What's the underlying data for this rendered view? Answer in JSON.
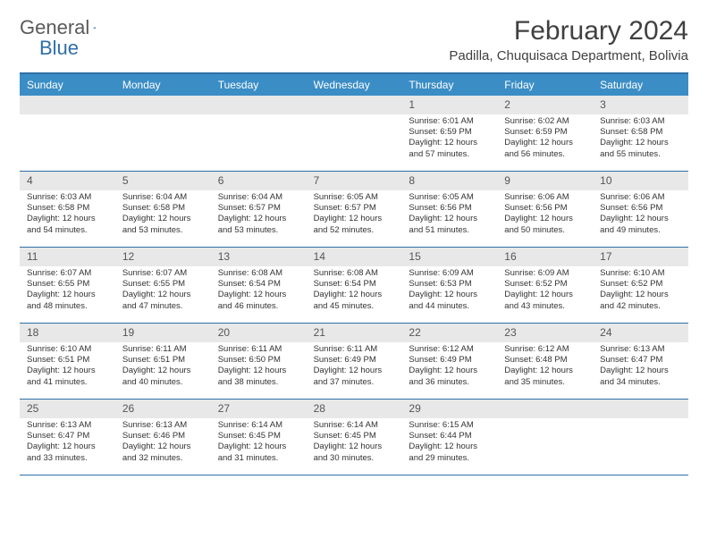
{
  "logo": {
    "text1": "General",
    "text2": "Blue"
  },
  "header": {
    "month_title": "February 2024",
    "location": "Padilla, Chuquisaca Department, Bolivia"
  },
  "day_names": [
    "Sunday",
    "Monday",
    "Tuesday",
    "Wednesday",
    "Thursday",
    "Friday",
    "Saturday"
  ],
  "colors": {
    "header_bg": "#3b8dc6",
    "header_text": "#ffffff",
    "border": "#2f6fa8",
    "daynum_bg": "#e8e8e8",
    "text": "#333333"
  },
  "weeks": [
    [
      {
        "n": "",
        "sr": "",
        "ss": "",
        "dl": ""
      },
      {
        "n": "",
        "sr": "",
        "ss": "",
        "dl": ""
      },
      {
        "n": "",
        "sr": "",
        "ss": "",
        "dl": ""
      },
      {
        "n": "",
        "sr": "",
        "ss": "",
        "dl": ""
      },
      {
        "n": "1",
        "sr": "Sunrise: 6:01 AM",
        "ss": "Sunset: 6:59 PM",
        "dl": "Daylight: 12 hours and 57 minutes."
      },
      {
        "n": "2",
        "sr": "Sunrise: 6:02 AM",
        "ss": "Sunset: 6:59 PM",
        "dl": "Daylight: 12 hours and 56 minutes."
      },
      {
        "n": "3",
        "sr": "Sunrise: 6:03 AM",
        "ss": "Sunset: 6:58 PM",
        "dl": "Daylight: 12 hours and 55 minutes."
      }
    ],
    [
      {
        "n": "4",
        "sr": "Sunrise: 6:03 AM",
        "ss": "Sunset: 6:58 PM",
        "dl": "Daylight: 12 hours and 54 minutes."
      },
      {
        "n": "5",
        "sr": "Sunrise: 6:04 AM",
        "ss": "Sunset: 6:58 PM",
        "dl": "Daylight: 12 hours and 53 minutes."
      },
      {
        "n": "6",
        "sr": "Sunrise: 6:04 AM",
        "ss": "Sunset: 6:57 PM",
        "dl": "Daylight: 12 hours and 53 minutes."
      },
      {
        "n": "7",
        "sr": "Sunrise: 6:05 AM",
        "ss": "Sunset: 6:57 PM",
        "dl": "Daylight: 12 hours and 52 minutes."
      },
      {
        "n": "8",
        "sr": "Sunrise: 6:05 AM",
        "ss": "Sunset: 6:56 PM",
        "dl": "Daylight: 12 hours and 51 minutes."
      },
      {
        "n": "9",
        "sr": "Sunrise: 6:06 AM",
        "ss": "Sunset: 6:56 PM",
        "dl": "Daylight: 12 hours and 50 minutes."
      },
      {
        "n": "10",
        "sr": "Sunrise: 6:06 AM",
        "ss": "Sunset: 6:56 PM",
        "dl": "Daylight: 12 hours and 49 minutes."
      }
    ],
    [
      {
        "n": "11",
        "sr": "Sunrise: 6:07 AM",
        "ss": "Sunset: 6:55 PM",
        "dl": "Daylight: 12 hours and 48 minutes."
      },
      {
        "n": "12",
        "sr": "Sunrise: 6:07 AM",
        "ss": "Sunset: 6:55 PM",
        "dl": "Daylight: 12 hours and 47 minutes."
      },
      {
        "n": "13",
        "sr": "Sunrise: 6:08 AM",
        "ss": "Sunset: 6:54 PM",
        "dl": "Daylight: 12 hours and 46 minutes."
      },
      {
        "n": "14",
        "sr": "Sunrise: 6:08 AM",
        "ss": "Sunset: 6:54 PM",
        "dl": "Daylight: 12 hours and 45 minutes."
      },
      {
        "n": "15",
        "sr": "Sunrise: 6:09 AM",
        "ss": "Sunset: 6:53 PM",
        "dl": "Daylight: 12 hours and 44 minutes."
      },
      {
        "n": "16",
        "sr": "Sunrise: 6:09 AM",
        "ss": "Sunset: 6:52 PM",
        "dl": "Daylight: 12 hours and 43 minutes."
      },
      {
        "n": "17",
        "sr": "Sunrise: 6:10 AM",
        "ss": "Sunset: 6:52 PM",
        "dl": "Daylight: 12 hours and 42 minutes."
      }
    ],
    [
      {
        "n": "18",
        "sr": "Sunrise: 6:10 AM",
        "ss": "Sunset: 6:51 PM",
        "dl": "Daylight: 12 hours and 41 minutes."
      },
      {
        "n": "19",
        "sr": "Sunrise: 6:11 AM",
        "ss": "Sunset: 6:51 PM",
        "dl": "Daylight: 12 hours and 40 minutes."
      },
      {
        "n": "20",
        "sr": "Sunrise: 6:11 AM",
        "ss": "Sunset: 6:50 PM",
        "dl": "Daylight: 12 hours and 38 minutes."
      },
      {
        "n": "21",
        "sr": "Sunrise: 6:11 AM",
        "ss": "Sunset: 6:49 PM",
        "dl": "Daylight: 12 hours and 37 minutes."
      },
      {
        "n": "22",
        "sr": "Sunrise: 6:12 AM",
        "ss": "Sunset: 6:49 PM",
        "dl": "Daylight: 12 hours and 36 minutes."
      },
      {
        "n": "23",
        "sr": "Sunrise: 6:12 AM",
        "ss": "Sunset: 6:48 PM",
        "dl": "Daylight: 12 hours and 35 minutes."
      },
      {
        "n": "24",
        "sr": "Sunrise: 6:13 AM",
        "ss": "Sunset: 6:47 PM",
        "dl": "Daylight: 12 hours and 34 minutes."
      }
    ],
    [
      {
        "n": "25",
        "sr": "Sunrise: 6:13 AM",
        "ss": "Sunset: 6:47 PM",
        "dl": "Daylight: 12 hours and 33 minutes."
      },
      {
        "n": "26",
        "sr": "Sunrise: 6:13 AM",
        "ss": "Sunset: 6:46 PM",
        "dl": "Daylight: 12 hours and 32 minutes."
      },
      {
        "n": "27",
        "sr": "Sunrise: 6:14 AM",
        "ss": "Sunset: 6:45 PM",
        "dl": "Daylight: 12 hours and 31 minutes."
      },
      {
        "n": "28",
        "sr": "Sunrise: 6:14 AM",
        "ss": "Sunset: 6:45 PM",
        "dl": "Daylight: 12 hours and 30 minutes."
      },
      {
        "n": "29",
        "sr": "Sunrise: 6:15 AM",
        "ss": "Sunset: 6:44 PM",
        "dl": "Daylight: 12 hours and 29 minutes."
      },
      {
        "n": "",
        "sr": "",
        "ss": "",
        "dl": ""
      },
      {
        "n": "",
        "sr": "",
        "ss": "",
        "dl": ""
      }
    ]
  ]
}
